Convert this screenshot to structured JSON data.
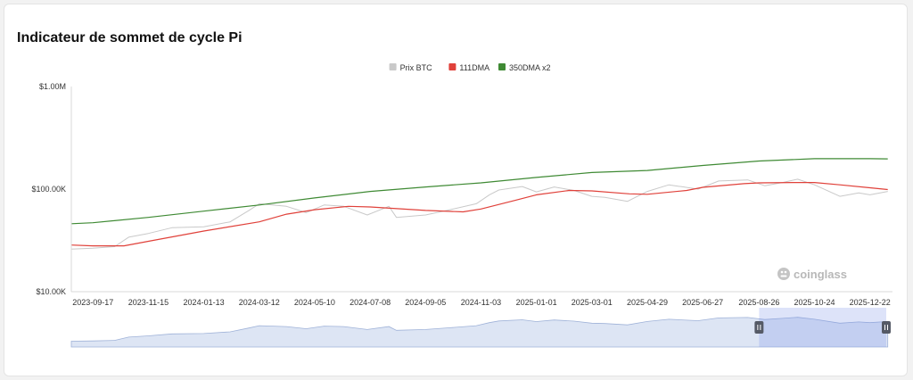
{
  "title": "Indicateur de sommet de cycle Pi",
  "watermark": "coinglass",
  "chart_data": {
    "type": "line",
    "y_scale": "log",
    "ylim": [
      10000,
      1000000
    ],
    "y_ticks": [
      {
        "value": 1000000,
        "label": "$1.00M"
      },
      {
        "value": 100000,
        "label": "$100.00K"
      },
      {
        "value": 10000,
        "label": "$10.00K"
      }
    ],
    "xlim": [
      "2023-08-25",
      "2026-01-15"
    ],
    "x_ticks": [
      "2023-09-17",
      "2023-11-15",
      "2024-01-13",
      "2024-03-12",
      "2024-05-10",
      "2024-07-08",
      "2024-09-05",
      "2024-11-03",
      "2025-01-01",
      "2025-03-01",
      "2025-04-29",
      "2025-06-27",
      "2025-08-26",
      "2025-10-24",
      "2025-12-22"
    ],
    "legend_position": "top-center",
    "series": [
      {
        "name": "Prix BTC",
        "color": "#c9c9c9",
        "points": [
          [
            "2023-08-25",
            26000
          ],
          [
            "2023-09-17",
            26500
          ],
          [
            "2023-10-10",
            27500
          ],
          [
            "2023-10-25",
            34000
          ],
          [
            "2023-11-15",
            37000
          ],
          [
            "2023-12-10",
            42000
          ],
          [
            "2024-01-13",
            43000
          ],
          [
            "2024-02-10",
            48000
          ],
          [
            "2024-03-01",
            62000
          ],
          [
            "2024-03-12",
            72000
          ],
          [
            "2024-04-10",
            68000
          ],
          [
            "2024-05-01",
            59000
          ],
          [
            "2024-05-20",
            70000
          ],
          [
            "2024-06-10",
            68000
          ],
          [
            "2024-07-05",
            56000
          ],
          [
            "2024-07-28",
            68000
          ],
          [
            "2024-08-05",
            53000
          ],
          [
            "2024-09-05",
            56000
          ],
          [
            "2024-10-01",
            63000
          ],
          [
            "2024-10-29",
            72000
          ],
          [
            "2024-11-12",
            88000
          ],
          [
            "2024-11-22",
            98000
          ],
          [
            "2024-12-17",
            106000
          ],
          [
            "2025-01-01",
            94000
          ],
          [
            "2025-01-20",
            105000
          ],
          [
            "2025-02-10",
            97000
          ],
          [
            "2025-03-01",
            85000
          ],
          [
            "2025-03-15",
            83000
          ],
          [
            "2025-04-08",
            76000
          ],
          [
            "2025-04-29",
            95000
          ],
          [
            "2025-05-22",
            110000
          ],
          [
            "2025-06-22",
            100000
          ],
          [
            "2025-07-14",
            120000
          ],
          [
            "2025-08-14",
            123000
          ],
          [
            "2025-09-01",
            108000
          ],
          [
            "2025-09-20",
            116000
          ],
          [
            "2025-10-06",
            125000
          ],
          [
            "2025-10-24",
            110000
          ],
          [
            "2025-11-20",
            85000
          ],
          [
            "2025-12-10",
            92000
          ],
          [
            "2025-12-22",
            88000
          ],
          [
            "2026-01-10",
            95000
          ]
        ]
      },
      {
        "name": "111DMA",
        "color": "#e0413a",
        "points": [
          [
            "2023-08-25",
            28500
          ],
          [
            "2023-09-17",
            28000
          ],
          [
            "2023-10-20",
            28000
          ],
          [
            "2023-11-15",
            31000
          ],
          [
            "2024-01-13",
            39000
          ],
          [
            "2024-03-12",
            48000
          ],
          [
            "2024-04-10",
            57000
          ],
          [
            "2024-05-10",
            63000
          ],
          [
            "2024-06-15",
            68000
          ],
          [
            "2024-07-08",
            67000
          ],
          [
            "2024-09-05",
            62000
          ],
          [
            "2024-10-15",
            60000
          ],
          [
            "2024-11-03",
            64000
          ],
          [
            "2024-12-10",
            78000
          ],
          [
            "2025-01-01",
            88000
          ],
          [
            "2025-02-05",
            97000
          ],
          [
            "2025-03-01",
            96000
          ],
          [
            "2025-04-10",
            90000
          ],
          [
            "2025-04-29",
            89000
          ],
          [
            "2025-06-10",
            97000
          ],
          [
            "2025-06-27",
            104000
          ],
          [
            "2025-08-10",
            113000
          ],
          [
            "2025-08-26",
            115000
          ],
          [
            "2025-10-01",
            116000
          ],
          [
            "2025-10-24",
            116000
          ],
          [
            "2025-11-20",
            110000
          ],
          [
            "2025-12-22",
            103000
          ],
          [
            "2026-01-10",
            99000
          ]
        ]
      },
      {
        "name": "350DMA x2",
        "color": "#3f8a34",
        "points": [
          [
            "2023-08-25",
            46000
          ],
          [
            "2023-09-17",
            47000
          ],
          [
            "2023-11-15",
            53000
          ],
          [
            "2024-01-13",
            61000
          ],
          [
            "2024-03-12",
            70000
          ],
          [
            "2024-05-10",
            82000
          ],
          [
            "2024-07-08",
            95000
          ],
          [
            "2024-09-05",
            105000
          ],
          [
            "2024-11-03",
            115000
          ],
          [
            "2025-01-01",
            130000
          ],
          [
            "2025-03-01",
            145000
          ],
          [
            "2025-04-29",
            152000
          ],
          [
            "2025-06-27",
            170000
          ],
          [
            "2025-08-26",
            188000
          ],
          [
            "2025-10-24",
            198000
          ],
          [
            "2025-12-22",
            198000
          ],
          [
            "2026-01-10",
            197000
          ]
        ]
      }
    ]
  },
  "navigator": {
    "range": [
      "2023-08-25",
      "2026-01-15"
    ],
    "selected_start": "2025-08-26",
    "selected_end": "2026-01-15"
  }
}
